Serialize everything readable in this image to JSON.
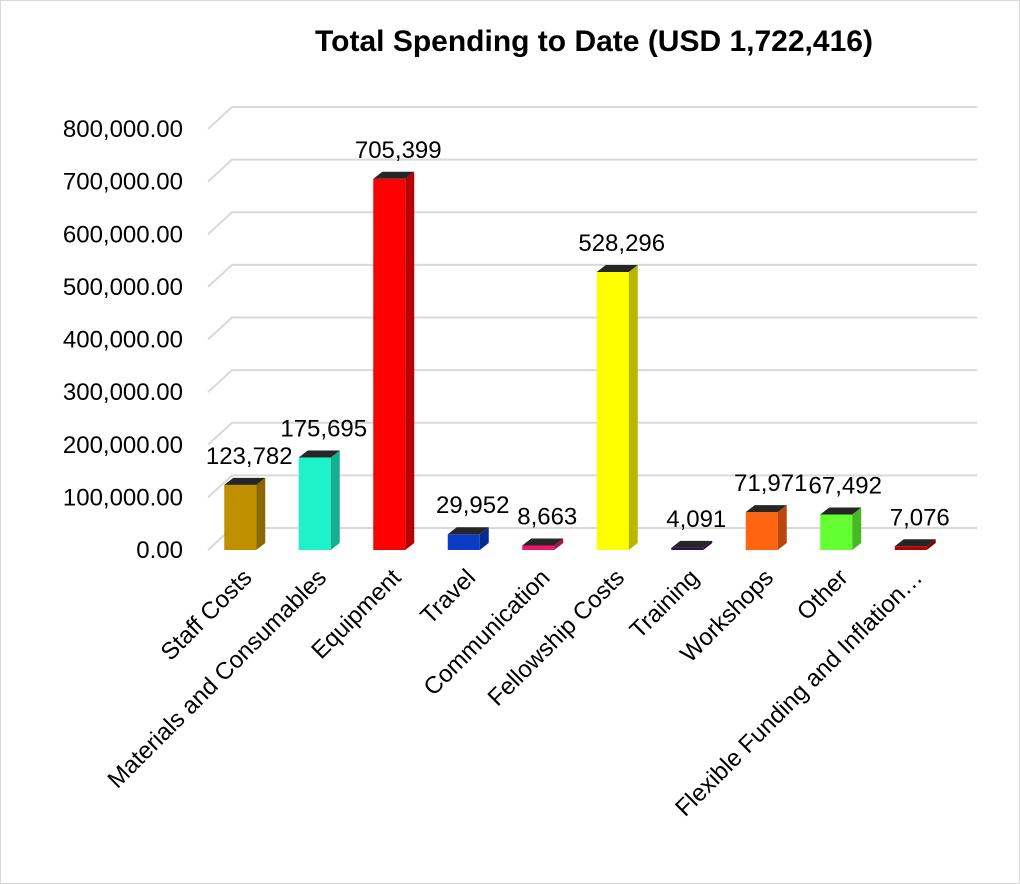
{
  "chart_data": {
    "type": "bar",
    "title": "Total Spending to Date (USD 1,722,416)",
    "xlabel": "",
    "ylabel": "",
    "ylim": [
      0,
      800000
    ],
    "yticks": [
      0,
      100000,
      200000,
      300000,
      400000,
      500000,
      600000,
      700000,
      800000
    ],
    "ytick_labels": [
      "0.00",
      "100,000.00",
      "200,000.00",
      "300,000.00",
      "400,000.00",
      "500,000.00",
      "600,000.00",
      "700,000.00",
      "800,000.00"
    ],
    "grid": true,
    "legend": "none",
    "style": "3d-column",
    "categories": [
      "Staff Costs",
      "Materials and Consumables",
      "Equipment",
      "Travel",
      "Communication",
      "Fellowship Costs",
      "Training",
      "Workshops",
      "Other",
      "Flexible Funding and Inflation…"
    ],
    "values": [
      123782,
      175695,
      705399,
      29952,
      8663,
      528296,
      4091,
      71971,
      67492,
      7076
    ],
    "data_labels": [
      "123,782",
      "175,695",
      "705,399",
      "29,952",
      "8,663",
      "528,296",
      "4,091",
      "71,971",
      "67,492",
      "7,076"
    ],
    "colors": [
      "#C09000",
      "#1EF2C8",
      "#FF0000",
      "#0A3CC8",
      "#F0146E",
      "#FFFF00",
      "#3A0A5A",
      "#FF6410",
      "#64FF32",
      "#B40000"
    ]
  }
}
